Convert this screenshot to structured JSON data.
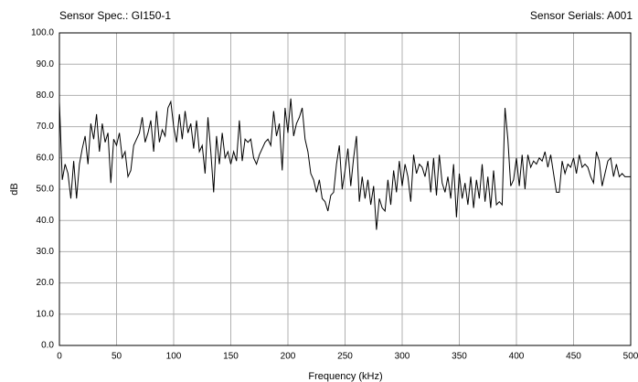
{
  "chart_data": {
    "type": "line",
    "title": "Sensor Spec.: GI150-1",
    "subtitle": "Sensor Serials: A001",
    "xlabel": "Frequency (kHz)",
    "ylabel": "dB",
    "xlim": [
      0,
      500
    ],
    "ylim": [
      0,
      100
    ],
    "xticks": [
      0,
      50,
      100,
      150,
      200,
      250,
      300,
      350,
      400,
      450,
      500
    ],
    "yticks": [
      {
        "value": 0,
        "label": "0.0"
      },
      {
        "value": 10,
        "label": "10.0"
      },
      {
        "value": 20,
        "label": "20.0"
      },
      {
        "value": 30,
        "label": "30.0"
      },
      {
        "value": 40,
        "label": "40.0"
      },
      {
        "value": 50,
        "label": "50.0"
      },
      {
        "value": 60,
        "label": "60.0"
      },
      {
        "value": 70,
        "label": "70.0"
      },
      {
        "value": 80,
        "label": "80.0"
      },
      {
        "value": 90,
        "label": "90.0"
      },
      {
        "value": 100,
        "label": "100.0"
      }
    ],
    "grid": true,
    "x": [
      0,
      2.5,
      5,
      7.5,
      10,
      12.5,
      15,
      17.5,
      20,
      22.5,
      25,
      27.5,
      30,
      32.5,
      35,
      37.5,
      40,
      42.5,
      45,
      47.5,
      50,
      52.5,
      55,
      57.5,
      60,
      62.5,
      65,
      67.5,
      70,
      72.5,
      75,
      77.5,
      80,
      82.5,
      85,
      87.5,
      90,
      92.5,
      95,
      97.5,
      100,
      102.5,
      105,
      107.5,
      110,
      112.5,
      115,
      117.5,
      120,
      122.5,
      125,
      127.5,
      130,
      132.5,
      135,
      137.5,
      140,
      142.5,
      145,
      147.5,
      150,
      152.5,
      155,
      157.5,
      160,
      162.5,
      165,
      167.5,
      170,
      172.5,
      175,
      177.5,
      180,
      182.5,
      185,
      187.5,
      190,
      192.5,
      195,
      197.5,
      200,
      202.5,
      205,
      207.5,
      210,
      212.5,
      215,
      217.5,
      220,
      222.5,
      225,
      227.5,
      230,
      232.5,
      235,
      237.5,
      240,
      242.5,
      245,
      247.5,
      250,
      252.5,
      255,
      257.5,
      260,
      262.5,
      265,
      267.5,
      270,
      272.5,
      275,
      277.5,
      280,
      282.5,
      285,
      287.5,
      290,
      292.5,
      295,
      297.5,
      300,
      302.5,
      305,
      307.5,
      310,
      312.5,
      315,
      317.5,
      320,
      322.5,
      325,
      327.5,
      330,
      332.5,
      335,
      337.5,
      340,
      342.5,
      345,
      347.5,
      350,
      352.5,
      355,
      357.5,
      360,
      362.5,
      365,
      367.5,
      370,
      372.5,
      375,
      377.5,
      380,
      382.5,
      385,
      387.5,
      390,
      392.5,
      395,
      397.5,
      400,
      402.5,
      405,
      407.5,
      410,
      412.5,
      415,
      417.5,
      420,
      422.5,
      425,
      427.5,
      430,
      432.5,
      435,
      437.5,
      440,
      442.5,
      445,
      447.5,
      450,
      452.5,
      455,
      457.5,
      460,
      462.5,
      465,
      467.5,
      470,
      472.5,
      475,
      477.5,
      480,
      482.5,
      485,
      487.5,
      490,
      492.5,
      495,
      497.5,
      500
    ],
    "series": [
      {
        "color": "#000000",
        "values": [
          78,
          53,
          58,
          55,
          47,
          59,
          47,
          58,
          63,
          67,
          58,
          71,
          66,
          74,
          62,
          71,
          65,
          68,
          52,
          66,
          64,
          68,
          60,
          62,
          54,
          56,
          64,
          66,
          68,
          73,
          65,
          68,
          72,
          62,
          75,
          65,
          69,
          67,
          76,
          78,
          70,
          65,
          74,
          66,
          75,
          68,
          71,
          63,
          72,
          62,
          64,
          55,
          73,
          62,
          49,
          67,
          58,
          68,
          60,
          62,
          58,
          62,
          59,
          72,
          59,
          66,
          65,
          66,
          60,
          58,
          61,
          63,
          65,
          66,
          64,
          75,
          67,
          71,
          56,
          76,
          68,
          79,
          67,
          71,
          73,
          76,
          66,
          62,
          55,
          53,
          49,
          53,
          47,
          46,
          43,
          48,
          49,
          58,
          64,
          50,
          56,
          63,
          51,
          60,
          67,
          46,
          54,
          47,
          53,
          45,
          51,
          37,
          47,
          44,
          43,
          53,
          45,
          56,
          49,
          59,
          51,
          58,
          54,
          46,
          61,
          55,
          58,
          57,
          54,
          59,
          49,
          60,
          48,
          61,
          52,
          49,
          54,
          47,
          58,
          41,
          55,
          47,
          52,
          45,
          54,
          44,
          53,
          47,
          58,
          46,
          54,
          44,
          56,
          45,
          46,
          45,
          76,
          66,
          51,
          53,
          60,
          51,
          61,
          50,
          61,
          57,
          59,
          58,
          60,
          59,
          62,
          57,
          61,
          55,
          49,
          49,
          59,
          55,
          58,
          57,
          60,
          55,
          61,
          57,
          58,
          57,
          54,
          52,
          62,
          59,
          51,
          55,
          59,
          60,
          54,
          58,
          54,
          55,
          54,
          54,
          54
        ]
      }
    ]
  }
}
